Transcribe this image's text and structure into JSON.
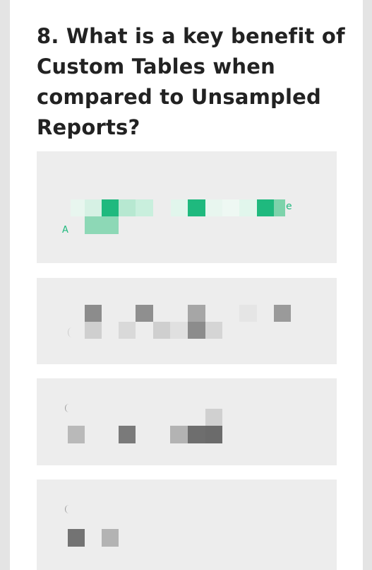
{
  "question": {
    "title": "8. What is a key benefit of Custom Tables when compared to Unsampled Reports?"
  },
  "options": [
    {
      "state": "selected-correct",
      "visible_fragments": [
        "A",
        "e"
      ]
    },
    {
      "state": "unselected"
    },
    {
      "state": "unselected"
    },
    {
      "state": "unselected"
    }
  ],
  "colors": {
    "accent_green": "#1db77c",
    "option_bg": "#ededed",
    "text": "#222222"
  }
}
